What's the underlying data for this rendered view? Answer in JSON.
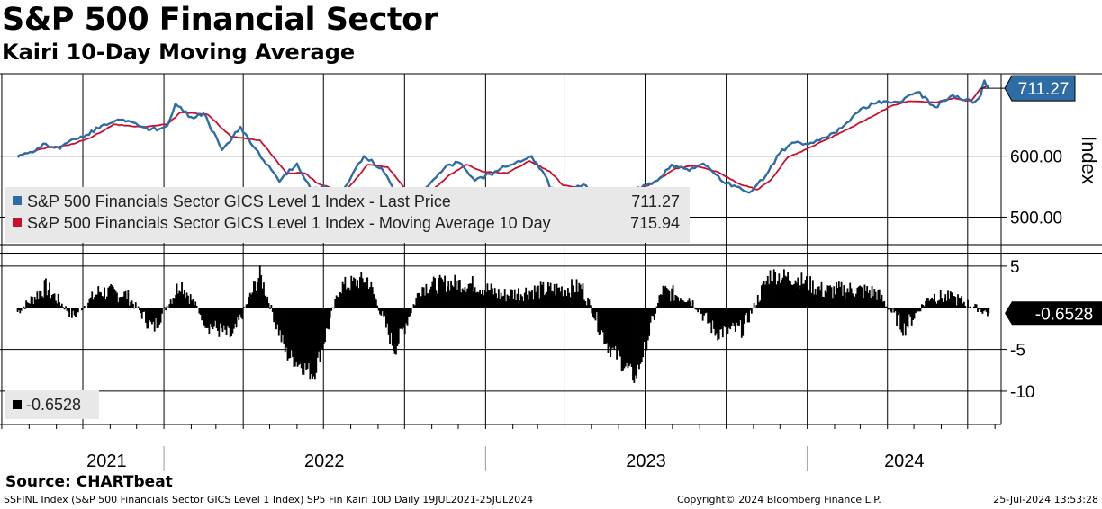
{
  "header": {
    "title": "S&P 500 Financial Sector",
    "subtitle": "Kairi 10-Day Moving Average"
  },
  "footer": {
    "source": "Source: CHARTbeat",
    "info": "SSFINL Index (S&P 500 Financials Sector GICS Level 1 Index) SP5 Fin Kairi 10D  Daily 19JUL2021-25JUL2024",
    "copyright": "Copyright© 2024 Bloomberg Finance L.P.",
    "timestamp": "25-Jul-2024 13:53:28"
  },
  "colors": {
    "price": "#2e6ca6",
    "ma": "#c8102e",
    "kairi": "#000000",
    "grid": "#000000",
    "legend_bg": "#e8e8e8",
    "price_label_bg": "#2e6ca6"
  },
  "chart_data": [
    {
      "type": "line",
      "panel": "price",
      "ylabel": "Index",
      "ylim": [
        455,
        735
      ],
      "y_ticks": [
        "600.00",
        "500.00"
      ],
      "y_tick_values": [
        600,
        500
      ],
      "x_ticks": [
        "2021",
        "2022",
        "2023",
        "2024"
      ],
      "x_tick_positions": [
        "2021-07-19",
        "2022-01-01",
        "2023-01-01",
        "2024-01-01"
      ],
      "current_label": "711.27",
      "series": [
        {
          "name": "S&P 500 Financials Sector GICS Level 1 Index - Last Price",
          "last_value": "711.27",
          "x": [
            "2021-07-19",
            "2021-08-05",
            "2021-08-20",
            "2021-09-05",
            "2021-09-20",
            "2021-10-05",
            "2021-10-25",
            "2021-11-10",
            "2021-11-30",
            "2021-12-15",
            "2022-01-05",
            "2022-01-14",
            "2022-02-01",
            "2022-02-15",
            "2022-03-08",
            "2022-03-29",
            "2022-04-15",
            "2022-05-12",
            "2022-06-01",
            "2022-06-16",
            "2022-07-05",
            "2022-07-22",
            "2022-08-16",
            "2022-09-05",
            "2022-09-30",
            "2022-10-25",
            "2022-11-15",
            "2022-12-01",
            "2022-12-20",
            "2023-01-15",
            "2023-02-07",
            "2023-02-22",
            "2023-03-09",
            "2023-03-15",
            "2023-03-31",
            "2023-04-25",
            "2023-05-05",
            "2023-05-31",
            "2023-06-20",
            "2023-07-15",
            "2023-07-31",
            "2023-08-20",
            "2023-09-05",
            "2023-09-25",
            "2023-10-10",
            "2023-10-27",
            "2023-11-15",
            "2023-12-01",
            "2023-12-15",
            "2024-01-05",
            "2024-01-31",
            "2024-02-15",
            "2024-03-05",
            "2024-03-28",
            "2024-04-18",
            "2024-05-05",
            "2024-05-25",
            "2024-06-14",
            "2024-06-28",
            "2024-07-10",
            "2024-07-16",
            "2024-07-20",
            "2024-07-25"
          ],
          "values": [
            598,
            606,
            620,
            612,
            628,
            635,
            652,
            660,
            654,
            642,
            650,
            686,
            664,
            670,
            610,
            648,
            612,
            558,
            588,
            548,
            548,
            542,
            600,
            580,
            520,
            548,
            580,
            590,
            560,
            576,
            592,
            600,
            570,
            548,
            542,
            552,
            526,
            532,
            546,
            560,
            586,
            576,
            588,
            560,
            552,
            540,
            568,
            605,
            622,
            622,
            638,
            655,
            680,
            690,
            690,
            705,
            680,
            700,
            692,
            690,
            700,
            724,
            711.27
          ]
        },
        {
          "name": "S&P 500 Financials Sector GICS Level 1 Index - Moving Average 10 Day",
          "last_value": "715.94",
          "x": [
            "2021-07-19",
            "2021-08-15",
            "2021-09-15",
            "2021-10-10",
            "2021-11-05",
            "2021-12-05",
            "2022-01-05",
            "2022-01-20",
            "2022-02-20",
            "2022-03-18",
            "2022-04-20",
            "2022-05-20",
            "2022-06-10",
            "2022-06-25",
            "2022-07-25",
            "2022-08-20",
            "2022-09-12",
            "2022-10-05",
            "2022-10-28",
            "2022-11-20",
            "2022-12-10",
            "2022-12-28",
            "2023-01-25",
            "2023-02-20",
            "2023-03-15",
            "2023-03-30",
            "2023-04-28",
            "2023-05-12",
            "2023-06-10",
            "2023-07-05",
            "2023-08-05",
            "2023-08-25",
            "2023-09-20",
            "2023-10-15",
            "2023-11-05",
            "2023-11-20",
            "2023-12-10",
            "2024-01-10",
            "2024-02-10",
            "2024-03-10",
            "2024-04-05",
            "2024-04-25",
            "2024-05-25",
            "2024-06-15",
            "2024-07-05",
            "2024-07-15",
            "2024-07-25"
          ],
          "values": [
            600,
            612,
            618,
            630,
            652,
            648,
            652,
            672,
            668,
            632,
            626,
            572,
            572,
            555,
            540,
            586,
            582,
            540,
            538,
            568,
            586,
            575,
            572,
            592,
            575,
            552,
            546,
            530,
            542,
            552,
            580,
            584,
            575,
            555,
            545,
            560,
            598,
            618,
            640,
            662,
            682,
            690,
            688,
            695,
            690,
            710,
            715.94
          ]
        }
      ]
    },
    {
      "type": "bar",
      "panel": "kairi",
      "ylim": [
        -14,
        6.5
      ],
      "y_ticks": [
        "5",
        "-5",
        "-10"
      ],
      "y_tick_values": [
        5,
        -5,
        -10
      ],
      "current_label": "-0.6528",
      "series": [
        {
          "name": "-0.6528",
          "last_value": "-0.6528",
          "x": [
            "2021-07-19",
            "2021-08-20",
            "2021-09-20",
            "2021-10-20",
            "2021-11-20",
            "2021-12-20",
            "2022-01-20",
            "2022-02-20",
            "2022-03-20",
            "2022-04-20",
            "2022-05-20",
            "2022-06-20",
            "2022-07-20",
            "2022-08-20",
            "2022-09-20",
            "2022-10-20",
            "2022-11-20",
            "2022-12-20",
            "2023-01-20",
            "2023-02-20",
            "2023-03-20",
            "2023-04-20",
            "2023-05-20",
            "2023-06-20",
            "2023-07-20",
            "2023-08-20",
            "2023-09-20",
            "2023-10-20",
            "2023-11-20",
            "2023-12-20",
            "2024-01-20",
            "2024-02-20",
            "2024-03-20",
            "2024-04-20",
            "2024-05-20",
            "2024-06-20",
            "2024-07-25"
          ],
          "values": [
            -0.5,
            2.5,
            -1.0,
            2.0,
            1.5,
            -2.5,
            3.0,
            -2.0,
            -3.5,
            4.0,
            -5.5,
            -8.0,
            2.5,
            3.5,
            -5.0,
            2.5,
            3.0,
            2.8,
            1.5,
            2.0,
            2.2,
            2.5,
            -4.5,
            -8.5,
            2.0,
            1.2,
            -3.0,
            -2.5,
            4.0,
            3.5,
            2.0,
            2.2,
            1.8,
            -2.5,
            1.5,
            1.0,
            -0.6528
          ]
        }
      ]
    }
  ]
}
